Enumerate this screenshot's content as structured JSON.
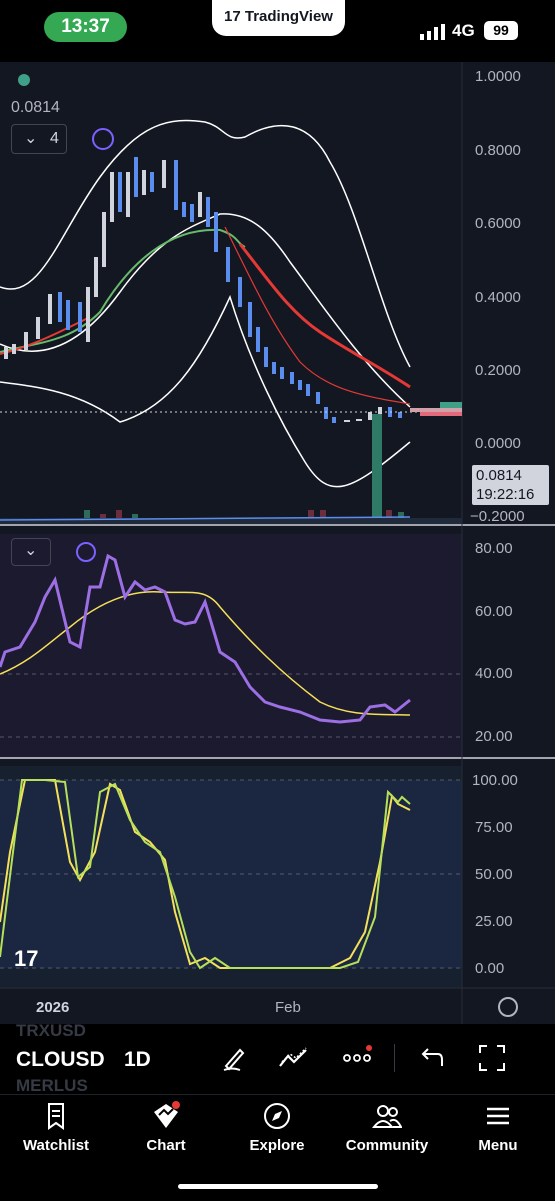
{
  "status_bar": {
    "time": "13:37",
    "network": "4G",
    "battery": "99"
  },
  "app_banner": {
    "label": "TradingView"
  },
  "legend": {
    "last_value": "0.0814",
    "indicator_count": "4"
  },
  "price_axis": {
    "ticks": [
      "1.0000",
      "0.8000",
      "0.6000",
      "0.4000",
      "0.2000",
      "0.0000",
      "−0.2000"
    ]
  },
  "price_label": {
    "price": "0.0814",
    "countdown": "19:22:16"
  },
  "rsi_axis": {
    "ticks": [
      "80.00",
      "60.00",
      "40.00",
      "20.00"
    ]
  },
  "stoch_axis": {
    "ticks": [
      "100.00",
      "75.00",
      "50.00",
      "25.00",
      "0.00"
    ]
  },
  "time_axis": {
    "labels": [
      "2026",
      "Feb"
    ]
  },
  "toolbar": {
    "symbol": "CLOUSD",
    "interval": "1D"
  },
  "watchlist_ghost": {
    "above": "TRXUSD",
    "below": "MERLUS"
  },
  "bottom_nav": {
    "items": [
      {
        "label": "Watchlist",
        "icon": "bookmark-icon"
      },
      {
        "label": "Chart",
        "icon": "chart-icon"
      },
      {
        "label": "Explore",
        "icon": "compass-icon"
      },
      {
        "label": "Community",
        "icon": "people-icon"
      },
      {
        "label": "Menu",
        "icon": "hamburger-icon"
      }
    ]
  },
  "colors": {
    "bg": "#131722",
    "up": "#d1d4dc",
    "down": "#5b8def",
    "ema_fast": "#e53935",
    "ma_green": "#66bb6a",
    "rsi": "#9c6fe4",
    "rsi_ma": "#f5e05a",
    "stoch_k": "#b7e05a",
    "stoch_d": "#f5e05a",
    "status_green": "#34a853"
  }
}
